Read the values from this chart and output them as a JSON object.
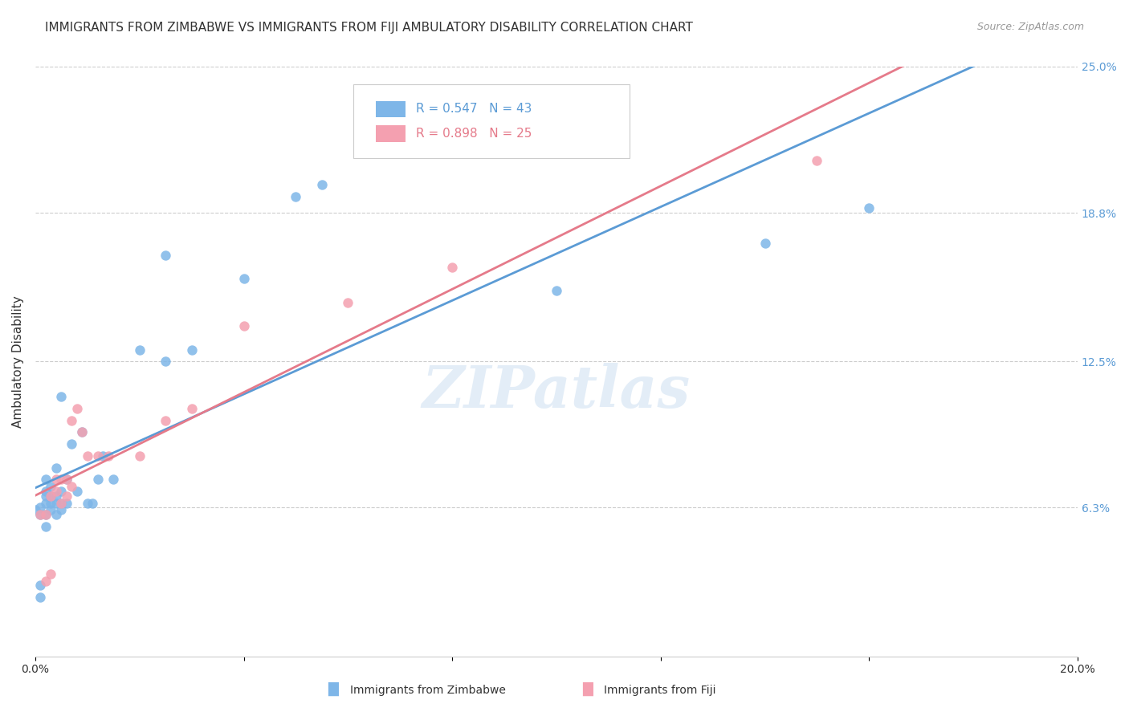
{
  "title": "IMMIGRANTS FROM ZIMBABWE VS IMMIGRANTS FROM FIJI AMBULATORY DISABILITY CORRELATION CHART",
  "source": "Source: ZipAtlas.com",
  "ylabel": "Ambulatory Disability",
  "watermark": "ZIPatlas",
  "xlim": [
    0.0,
    0.2
  ],
  "ylim": [
    0.0,
    0.25
  ],
  "xtick_positions": [
    0.0,
    0.04,
    0.08,
    0.12,
    0.16,
    0.2
  ],
  "xtick_labels": [
    "0.0%",
    "",
    "",
    "",
    "",
    "20.0%"
  ],
  "ytick_labels_right": [
    "6.3%",
    "12.5%",
    "18.8%",
    "25.0%"
  ],
  "ytick_vals_right": [
    0.063,
    0.125,
    0.188,
    0.25
  ],
  "zimbabwe_color": "#7EB6E8",
  "fiji_color": "#F4A0B0",
  "line_zimbabwe_color": "#5B9BD5",
  "line_fiji_color": "#E57A8A",
  "legend_r_zimbabwe": "R = 0.547",
  "legend_n_zimbabwe": "N = 43",
  "legend_r_fiji": "R = 0.898",
  "legend_n_fiji": "N = 25",
  "legend_label_zimbabwe": "Immigrants from Zimbabwe",
  "legend_label_fiji": "Immigrants from Fiji",
  "title_fontsize": 11,
  "axis_label_fontsize": 11,
  "tick_fontsize": 10,
  "legend_fontsize": 11,
  "zimbabwe_x": [
    0.0,
    0.001,
    0.001,
    0.001,
    0.001,
    0.002,
    0.002,
    0.002,
    0.002,
    0.002,
    0.002,
    0.003,
    0.003,
    0.003,
    0.003,
    0.004,
    0.004,
    0.004,
    0.004,
    0.005,
    0.005,
    0.005,
    0.005,
    0.006,
    0.006,
    0.007,
    0.008,
    0.009,
    0.01,
    0.011,
    0.012,
    0.013,
    0.015,
    0.02,
    0.025,
    0.03,
    0.04,
    0.05,
    0.055,
    0.1,
    0.14,
    0.16,
    0.025
  ],
  "zimbabwe_y": [
    0.062,
    0.06,
    0.03,
    0.025,
    0.063,
    0.055,
    0.06,
    0.065,
    0.068,
    0.07,
    0.075,
    0.062,
    0.065,
    0.068,
    0.072,
    0.06,
    0.065,
    0.068,
    0.08,
    0.062,
    0.065,
    0.07,
    0.11,
    0.065,
    0.075,
    0.09,
    0.07,
    0.095,
    0.065,
    0.065,
    0.075,
    0.085,
    0.075,
    0.13,
    0.125,
    0.13,
    0.16,
    0.195,
    0.2,
    0.155,
    0.175,
    0.19,
    0.17
  ],
  "fiji_x": [
    0.001,
    0.002,
    0.002,
    0.003,
    0.003,
    0.004,
    0.004,
    0.005,
    0.005,
    0.006,
    0.006,
    0.007,
    0.007,
    0.008,
    0.009,
    0.01,
    0.012,
    0.014,
    0.02,
    0.025,
    0.03,
    0.04,
    0.06,
    0.08,
    0.15
  ],
  "fiji_y": [
    0.06,
    0.032,
    0.06,
    0.035,
    0.068,
    0.07,
    0.075,
    0.065,
    0.075,
    0.068,
    0.075,
    0.072,
    0.1,
    0.105,
    0.095,
    0.085,
    0.085,
    0.085,
    0.085,
    0.1,
    0.105,
    0.14,
    0.15,
    0.165,
    0.21
  ]
}
